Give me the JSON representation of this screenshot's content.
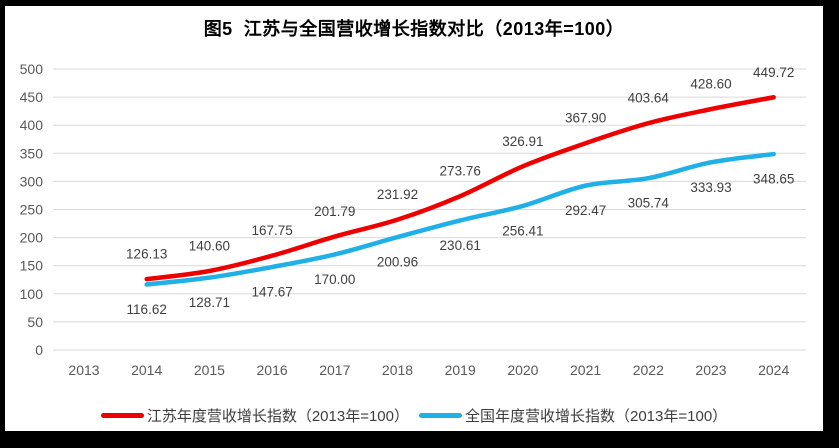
{
  "title": "图5  江苏与全国营收增长指数对比（2013年=100）",
  "chart_data": {
    "type": "line",
    "smoothed": true,
    "title": "图5  江苏与全国营收增长指数对比（2013年=100）",
    "categories": [
      "2013",
      "2014",
      "2015",
      "2016",
      "2017",
      "2018",
      "2019",
      "2020",
      "2021",
      "2022",
      "2023",
      "2024"
    ],
    "series": [
      {
        "name": "江苏年度营收增长指数（2013年=100）",
        "color": "#ee0000",
        "label_side": "above",
        "values": [
          null,
          "126.13",
          "140.60",
          "167.75",
          "201.79",
          "231.92",
          "273.76",
          "326.91",
          "367.90",
          "403.64",
          "428.60",
          "449.72"
        ]
      },
      {
        "name": "全国年度营收增长指数（2013年=100）",
        "color": "#1eb0e6",
        "label_side": "below",
        "values": [
          null,
          "116.62",
          "128.71",
          "147.67",
          "170.00",
          "200.96",
          "230.61",
          "256.41",
          "292.47",
          "305.74",
          "333.93",
          "348.65"
        ]
      }
    ],
    "ylim": [
      0,
      500
    ],
    "yticks": [
      "0",
      "50",
      "100",
      "150",
      "200",
      "250",
      "300",
      "350",
      "400",
      "450",
      "500"
    ],
    "grid": true,
    "legend_position": "bottom",
    "colors": {
      "grid": "#d9d9d9",
      "tick_text": "#595959",
      "data_label_text": "#3f3f3f",
      "legend_text": "#3d3d3d",
      "title_text": "#000000",
      "background": "#ffffff",
      "frame": "#000000"
    }
  }
}
